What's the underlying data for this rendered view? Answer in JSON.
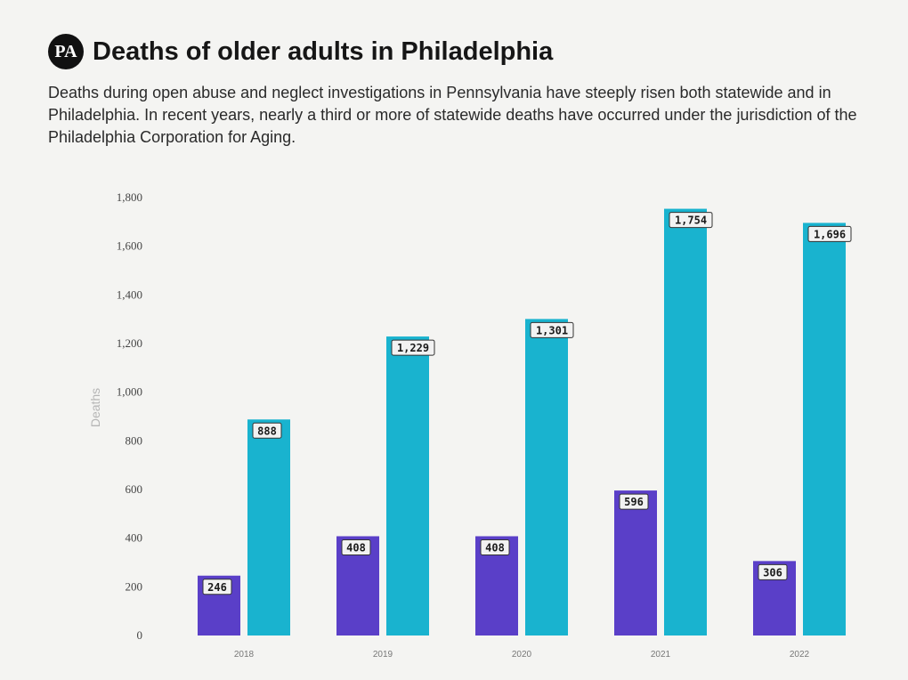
{
  "header": {
    "logo_text": "PA",
    "title": "Deaths of older adults in Philadelphia",
    "subtitle": "Deaths during open abuse and neglect investigations in Pennsylvania have steeply risen both statewide and in Philadelphia. In recent years, nearly a third or more of statewide deaths have occurred under the jurisdiction of the Philadelphia Corporation for Aging."
  },
  "chart_data": {
    "type": "bar",
    "categories": [
      "2018",
      "2019",
      "2020",
      "2021",
      "2022"
    ],
    "series": [
      {
        "values": [
          246,
          408,
          408,
          596,
          306
        ],
        "color": "#5a3fc8"
      },
      {
        "values": [
          888,
          1229,
          1301,
          1754,
          1696
        ],
        "color": "#19b3cf"
      }
    ],
    "ylabel": "Deaths",
    "xlabel": "",
    "ylim": [
      0,
      1800
    ],
    "yticks": [
      {
        "value": 0,
        "label": "0"
      },
      {
        "value": 200,
        "label": "200"
      },
      {
        "value": 400,
        "label": "400"
      },
      {
        "value": 600,
        "label": "600"
      },
      {
        "value": 800,
        "label": "800"
      },
      {
        "value": 1000,
        "label": "1,000"
      },
      {
        "value": 1200,
        "label": "1,200"
      },
      {
        "value": 1400,
        "label": "1,400"
      },
      {
        "value": 1600,
        "label": "1,600"
      },
      {
        "value": 1800,
        "label": "1,800"
      }
    ],
    "data_labels": [
      [
        "246",
        "408",
        "408",
        "596",
        "306"
      ],
      [
        "888",
        "1,229",
        "1,301",
        "1,754",
        "1,696"
      ]
    ],
    "grid": false,
    "legend": "none"
  }
}
